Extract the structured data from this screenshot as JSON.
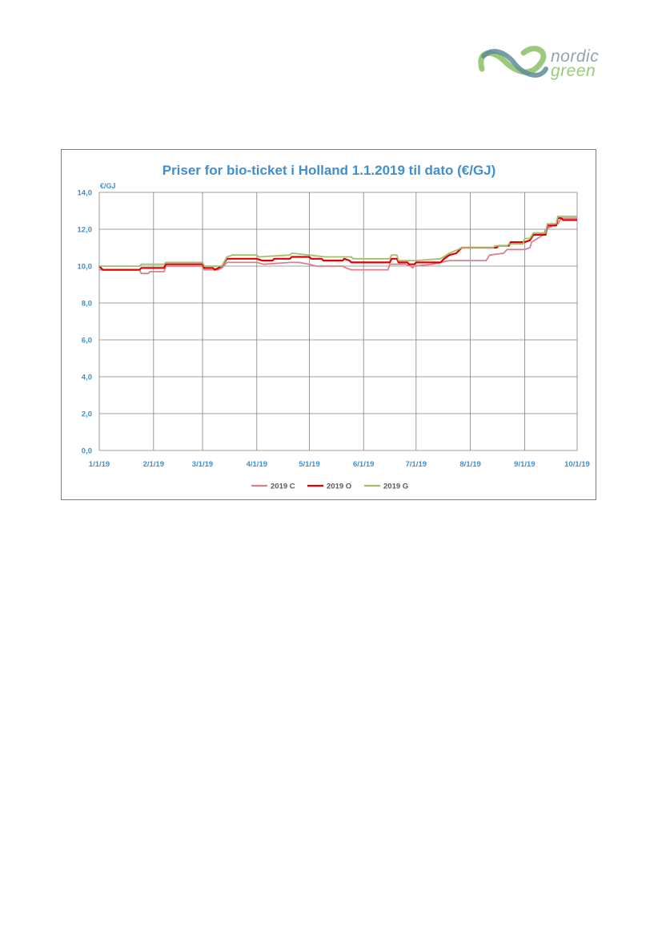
{
  "logo": {
    "line1": "nordic",
    "line2": "green"
  },
  "chart_data": {
    "type": "line",
    "title": "Priser for bio-ticket i Holland 1.1.2019 til dato (€/GJ)",
    "ylabel": "€/GJ",
    "xlabel": "",
    "ylim": [
      0,
      14
    ],
    "xlim": [
      "2019-01-01",
      "2019-10-01"
    ],
    "yticks": [
      "0,0",
      "2,0",
      "4,0",
      "6,0",
      "8,0",
      "10,0",
      "12,0",
      "14,0"
    ],
    "xticks": [
      "1/1/19",
      "2/1/19",
      "3/1/19",
      "4/1/19",
      "5/1/19",
      "6/1/19",
      "7/1/19",
      "8/1/19",
      "9/1/19",
      "10/1/19"
    ],
    "grid": true,
    "legend_position": "bottom",
    "colors": {
      "title": "#3f8fd0",
      "axis": "#3f8fd0",
      "grid": "#808080"
    },
    "series": [
      {
        "name": "2019 C",
        "color": "#d9808c",
        "points": [
          [
            "2019-01-01",
            9.8
          ],
          [
            "2019-01-03",
            9.8
          ],
          [
            "2019-01-24",
            9.8
          ],
          [
            "2019-01-25",
            9.6
          ],
          [
            "2019-01-29",
            9.6
          ],
          [
            "2019-01-30",
            9.7
          ],
          [
            "2019-02-07",
            9.7
          ],
          [
            "2019-02-08",
            10.0
          ],
          [
            "2019-03-01",
            10.0
          ],
          [
            "2019-03-02",
            9.8
          ],
          [
            "2019-03-10",
            9.8
          ],
          [
            "2019-03-12",
            9.9
          ],
          [
            "2019-03-15",
            10.2
          ],
          [
            "2019-04-01",
            10.2
          ],
          [
            "2019-04-05",
            10.1
          ],
          [
            "2019-04-20",
            10.2
          ],
          [
            "2019-04-25",
            10.2
          ],
          [
            "2019-05-01",
            10.1
          ],
          [
            "2019-05-05",
            10.0
          ],
          [
            "2019-05-20",
            10.0
          ],
          [
            "2019-05-22",
            9.9
          ],
          [
            "2019-05-25",
            9.8
          ],
          [
            "2019-06-15",
            9.8
          ],
          [
            "2019-06-16",
            10.1
          ],
          [
            "2019-06-25",
            10.1
          ],
          [
            "2019-06-28",
            10.0
          ],
          [
            "2019-06-29",
            9.9
          ],
          [
            "2019-06-30",
            10.0
          ],
          [
            "2019-07-10",
            10.1
          ],
          [
            "2019-07-20",
            10.3
          ],
          [
            "2019-08-10",
            10.3
          ],
          [
            "2019-08-12",
            10.6
          ],
          [
            "2019-08-20",
            10.7
          ],
          [
            "2019-08-22",
            10.9
          ],
          [
            "2019-09-01",
            10.9
          ],
          [
            "2019-09-04",
            11.0
          ],
          [
            "2019-09-05",
            11.3
          ],
          [
            "2019-09-10",
            11.6
          ],
          [
            "2019-09-12",
            11.7
          ],
          [
            "2019-09-13",
            12.0
          ],
          [
            "2019-09-15",
            12.1
          ],
          [
            "2019-09-20",
            12.3
          ],
          [
            "2019-09-22",
            12.6
          ],
          [
            "2019-10-01",
            12.6
          ]
        ]
      },
      {
        "name": "2019 O",
        "color": "#e00000",
        "points": [
          [
            "2019-01-01",
            10.0
          ],
          [
            "2019-01-03",
            9.8
          ],
          [
            "2019-01-24",
            9.8
          ],
          [
            "2019-01-25",
            9.9
          ],
          [
            "2019-02-07",
            9.9
          ],
          [
            "2019-02-08",
            10.1
          ],
          [
            "2019-03-01",
            10.1
          ],
          [
            "2019-03-02",
            9.9
          ],
          [
            "2019-03-07",
            9.9
          ],
          [
            "2019-03-08",
            9.8
          ],
          [
            "2019-03-12",
            10.0
          ],
          [
            "2019-03-15",
            10.4
          ],
          [
            "2019-04-01",
            10.4
          ],
          [
            "2019-04-04",
            10.3
          ],
          [
            "2019-04-10",
            10.3
          ],
          [
            "2019-04-11",
            10.4
          ],
          [
            "2019-04-20",
            10.4
          ],
          [
            "2019-04-21",
            10.5
          ],
          [
            "2019-05-01",
            10.5
          ],
          [
            "2019-05-02",
            10.4
          ],
          [
            "2019-05-08",
            10.4
          ],
          [
            "2019-05-09",
            10.3
          ],
          [
            "2019-05-20",
            10.3
          ],
          [
            "2019-05-21",
            10.4
          ],
          [
            "2019-05-24",
            10.3
          ],
          [
            "2019-05-25",
            10.2
          ],
          [
            "2019-06-16",
            10.2
          ],
          [
            "2019-06-17",
            10.4
          ],
          [
            "2019-06-20",
            10.4
          ],
          [
            "2019-06-21",
            10.2
          ],
          [
            "2019-06-26",
            10.2
          ],
          [
            "2019-06-27",
            10.1
          ],
          [
            "2019-06-30",
            10.1
          ],
          [
            "2019-07-01",
            10.2
          ],
          [
            "2019-07-15",
            10.2
          ],
          [
            "2019-07-17",
            10.4
          ],
          [
            "2019-07-20",
            10.6
          ],
          [
            "2019-07-24",
            10.7
          ],
          [
            "2019-07-27",
            11.0
          ],
          [
            "2019-08-16",
            11.0
          ],
          [
            "2019-08-17",
            11.1
          ],
          [
            "2019-08-23",
            11.1
          ],
          [
            "2019-08-24",
            11.3
          ],
          [
            "2019-09-01",
            11.3
          ],
          [
            "2019-09-04",
            11.4
          ],
          [
            "2019-09-06",
            11.7
          ],
          [
            "2019-09-13",
            11.7
          ],
          [
            "2019-09-14",
            12.2
          ],
          [
            "2019-09-19",
            12.2
          ],
          [
            "2019-09-20",
            12.6
          ],
          [
            "2019-09-22",
            12.6
          ],
          [
            "2019-09-23",
            12.5
          ],
          [
            "2019-10-01",
            12.5
          ]
        ]
      },
      {
        "name": "2019 G",
        "color": "#9fbf6f",
        "points": [
          [
            "2019-01-01",
            10.0
          ],
          [
            "2019-01-24",
            10.0
          ],
          [
            "2019-01-25",
            10.1
          ],
          [
            "2019-02-07",
            10.1
          ],
          [
            "2019-02-08",
            10.2
          ],
          [
            "2019-03-01",
            10.2
          ],
          [
            "2019-03-02",
            10.0
          ],
          [
            "2019-03-12",
            10.0
          ],
          [
            "2019-03-15",
            10.5
          ],
          [
            "2019-03-18",
            10.6
          ],
          [
            "2019-04-01",
            10.6
          ],
          [
            "2019-04-02",
            10.5
          ],
          [
            "2019-04-20",
            10.6
          ],
          [
            "2019-04-21",
            10.7
          ],
          [
            "2019-05-01",
            10.6
          ],
          [
            "2019-05-10",
            10.5
          ],
          [
            "2019-05-25",
            10.5
          ],
          [
            "2019-05-26",
            10.4
          ],
          [
            "2019-06-16",
            10.4
          ],
          [
            "2019-06-17",
            10.6
          ],
          [
            "2019-06-20",
            10.6
          ],
          [
            "2019-06-21",
            10.3
          ],
          [
            "2019-07-01",
            10.3
          ],
          [
            "2019-07-15",
            10.4
          ],
          [
            "2019-07-20",
            10.7
          ],
          [
            "2019-07-25",
            10.9
          ],
          [
            "2019-07-27",
            11.0
          ],
          [
            "2019-08-14",
            11.0
          ],
          [
            "2019-08-15",
            11.1
          ],
          [
            "2019-08-22",
            11.1
          ],
          [
            "2019-08-23",
            11.2
          ],
          [
            "2019-08-31",
            11.2
          ],
          [
            "2019-09-01",
            11.5
          ],
          [
            "2019-09-04",
            11.5
          ],
          [
            "2019-09-06",
            11.8
          ],
          [
            "2019-09-13",
            11.8
          ],
          [
            "2019-09-14",
            12.3
          ],
          [
            "2019-09-19",
            12.3
          ],
          [
            "2019-09-20",
            12.7
          ],
          [
            "2019-10-01",
            12.7
          ]
        ]
      }
    ]
  }
}
